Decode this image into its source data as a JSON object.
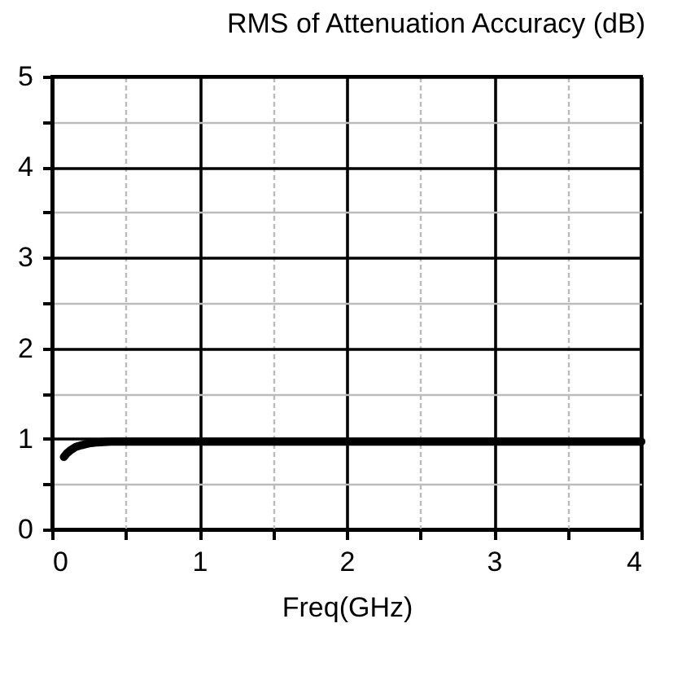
{
  "chart_data": {
    "type": "line",
    "title": "RMS of Attenuation Accuracy (dB)",
    "xlabel": "Freq(GHz)",
    "x": [
      0.08,
      0.1,
      0.13,
      0.16,
      0.2,
      0.25,
      0.3,
      0.4,
      0.5,
      1,
      2,
      3,
      4
    ],
    "series": [
      {
        "color": "#000000",
        "values": [
          0.8,
          0.84,
          0.88,
          0.91,
          0.93,
          0.95,
          0.96,
          0.97,
          0.97,
          0.97,
          0.97,
          0.97,
          0.97
        ]
      }
    ],
    "xlim": [
      0,
      4
    ],
    "ylim": [
      0,
      5
    ],
    "xticks": [
      0,
      {
        "value": 0.5,
        "label": null
      },
      1,
      {
        "value": 1.5,
        "label": null
      },
      2,
      {
        "value": 2.5,
        "label": null
      },
      3,
      {
        "value": 3.5,
        "label": null
      },
      4
    ],
    "yticks": [
      0,
      {
        "value": 0.5,
        "label": null
      },
      1,
      {
        "value": 1.5,
        "label": null
      },
      2,
      {
        "value": 2.5,
        "label": null
      },
      3,
      {
        "value": 3.5,
        "label": null
      },
      4,
      {
        "value": 4.5,
        "label": null
      },
      5
    ],
    "grid": true,
    "legend": false,
    "marker": "none",
    "line_style": "solid"
  }
}
